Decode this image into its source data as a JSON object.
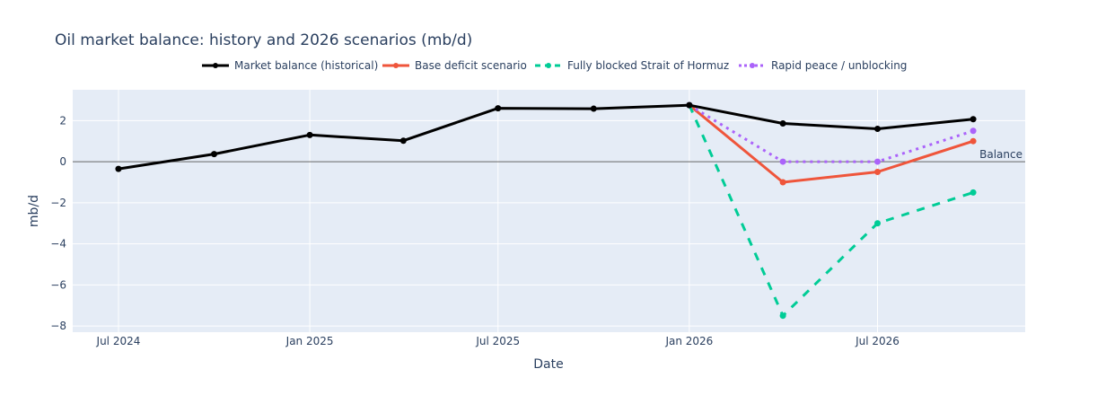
{
  "chart_data": {
    "type": "line",
    "title": "Oil market balance: history and 2026 scenarios (mb/d)",
    "xlabel": "Date",
    "ylabel": "mb/d",
    "xlim": [
      "2024-05-18",
      "2026-11-20"
    ],
    "ylim": [
      -8.3,
      3.5
    ],
    "grid": true,
    "legend_position": "top",
    "x_ticks": [
      {
        "date": "2024-07-01",
        "label": "Jul 2024"
      },
      {
        "date": "2025-01-01",
        "label": "Jan 2025"
      },
      {
        "date": "2025-07-01",
        "label": "Jul 2025"
      },
      {
        "date": "2026-01-01",
        "label": "Jan 2026"
      },
      {
        "date": "2026-07-01",
        "label": "Jul 2026"
      }
    ],
    "y_ticks": [
      {
        "value": 2,
        "label": "2"
      },
      {
        "value": 0,
        "label": "0"
      },
      {
        "value": -2,
        "label": "−2"
      },
      {
        "value": -4,
        "label": "−4"
      },
      {
        "value": -6,
        "label": "−6"
      },
      {
        "value": -8,
        "label": "−8"
      }
    ],
    "series": [
      {
        "name": "Market balance (historical)",
        "color": "#000000",
        "dash": "solid",
        "width": 3,
        "x": [
          "2024-07-01",
          "2024-10-01",
          "2025-01-01",
          "2025-04-01",
          "2025-07-01",
          "2025-10-01",
          "2026-01-01",
          "2026-04-01",
          "2026-07-01",
          "2026-10-01"
        ],
        "values": [
          -0.35,
          0.37,
          1.3,
          1.02,
          2.6,
          2.58,
          2.75,
          1.86,
          1.6,
          2.07
        ]
      },
      {
        "name": "Base deficit scenario",
        "color": "#EF553B",
        "dash": "solid",
        "width": 3,
        "x": [
          "2026-01-01",
          "2026-04-01",
          "2026-07-01",
          "2026-10-01"
        ],
        "values": [
          2.75,
          -1.0,
          -0.5,
          1.0
        ]
      },
      {
        "name": "Fully blocked Strait of Hormuz",
        "color": "#00CC96",
        "dash": "dash",
        "width": 3,
        "x": [
          "2026-01-01",
          "2026-04-01",
          "2026-07-01",
          "2026-10-01"
        ],
        "values": [
          2.75,
          -7.5,
          -3.0,
          -1.5
        ]
      },
      {
        "name": "Rapid peace / unblocking",
        "color": "#AB63FA",
        "dash": "dot",
        "width": 3,
        "x": [
          "2026-01-01",
          "2026-04-01",
          "2026-07-01",
          "2026-10-01"
        ],
        "values": [
          2.75,
          0.0,
          0.0,
          1.5
        ]
      }
    ],
    "annotations": [
      {
        "text": "Balance",
        "y": 0
      }
    ]
  }
}
